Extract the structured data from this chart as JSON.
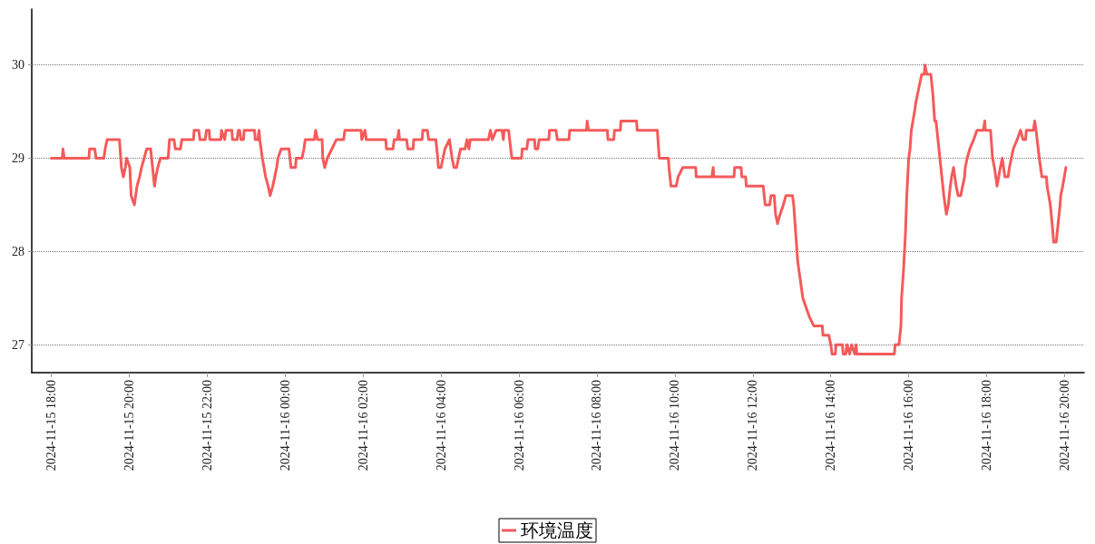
{
  "chart_data": {
    "type": "line",
    "legend": "bottom",
    "grid": "y",
    "marker": "none",
    "line_style": "solid",
    "xlim": [
      "2024-11-15T17:30",
      "2024-11-16T20:30"
    ],
    "ylim": [
      26.7,
      30.6
    ],
    "yticks": [
      27,
      28,
      29,
      30
    ],
    "xticks": [
      {
        "value": "2024-11-15T18:00",
        "label": "2024-11-15 18:00"
      },
      {
        "value": "2024-11-15T20:00",
        "label": "2024-11-15 20:00"
      },
      {
        "value": "2024-11-15T22:00",
        "label": "2024-11-15 22:00"
      },
      {
        "value": "2024-11-16T00:00",
        "label": "2024-11-16 00:00"
      },
      {
        "value": "2024-11-16T02:00",
        "label": "2024-11-16 02:00"
      },
      {
        "value": "2024-11-16T04:00",
        "label": "2024-11-16 04:00"
      },
      {
        "value": "2024-11-16T06:00",
        "label": "2024-11-16 06:00"
      },
      {
        "value": "2024-11-16T08:00",
        "label": "2024-11-16 08:00"
      },
      {
        "value": "2024-11-16T10:00",
        "label": "2024-11-16 10:00"
      },
      {
        "value": "2024-11-16T12:00",
        "label": "2024-11-16 12:00"
      },
      {
        "value": "2024-11-16T14:00",
        "label": "2024-11-16 14:00"
      },
      {
        "value": "2024-11-16T16:00",
        "label": "2024-11-16 16:00"
      },
      {
        "value": "2024-11-16T18:00",
        "label": "2024-11-16 18:00"
      },
      {
        "value": "2024-11-16T20:00",
        "label": "2024-11-16 20:00"
      }
    ],
    "x": [
      "2024-11-15T18:00",
      "2024-11-15T18:17",
      "2024-11-15T18:18",
      "2024-11-15T18:20",
      "2024-11-15T18:58",
      "2024-11-15T18:59",
      "2024-11-15T19:07",
      "2024-11-15T19:09",
      "2024-11-15T19:21",
      "2024-11-15T19:23",
      "2024-11-15T19:26",
      "2024-11-15T19:45",
      "2024-11-15T19:48",
      "2024-11-15T19:51",
      "2024-11-15T19:54",
      "2024-11-15T19:56",
      "2024-11-15T20:01",
      "2024-11-15T20:03",
      "2024-11-15T20:08",
      "2024-11-15T20:12",
      "2024-11-15T20:16",
      "2024-11-15T20:19",
      "2024-11-15T20:23",
      "2024-11-15T20:27",
      "2024-11-15T20:33",
      "2024-11-15T20:36",
      "2024-11-15T20:39",
      "2024-11-15T20:41",
      "2024-11-15T20:44",
      "2024-11-15T20:48",
      "2024-11-15T21:00",
      "2024-11-15T21:02",
      "2024-11-15T21:09",
      "2024-11-15T21:11",
      "2024-11-15T21:19",
      "2024-11-15T21:21",
      "2024-11-15T21:39",
      "2024-11-15T21:40",
      "2024-11-15T21:47",
      "2024-11-15T21:49",
      "2024-11-15T21:57",
      "2024-11-15T21:59",
      "2024-11-15T22:03",
      "2024-11-15T22:04",
      "2024-11-15T22:21",
      "2024-11-15T22:22",
      "2024-11-15T22:27",
      "2024-11-15T22:29",
      "2024-11-15T22:38",
      "2024-11-15T22:39",
      "2024-11-15T22:46",
      "2024-11-15T22:48",
      "2024-11-15T22:50",
      "2024-11-15T22:52",
      "2024-11-15T22:56",
      "2024-11-15T22:57",
      "2024-11-15T23:13",
      "2024-11-15T23:14",
      "2024-11-15T23:18",
      "2024-11-15T23:20",
      "2024-11-15T23:21",
      "2024-11-15T23:25",
      "2024-11-15T23:30",
      "2024-11-15T23:34",
      "2024-11-15T23:37",
      "2024-11-15T23:41",
      "2024-11-15T23:44",
      "2024-11-15T23:47",
      "2024-11-15T23:49",
      "2024-11-15T23:54",
      "2024-11-16T00:06",
      "2024-11-16T00:09",
      "2024-11-16T00:16",
      "2024-11-16T00:17",
      "2024-11-16T00:26",
      "2024-11-16T00:29",
      "2024-11-16T00:31",
      "2024-11-16T00:45",
      "2024-11-16T00:47",
      "2024-11-16T00:50",
      "2024-11-16T00:57",
      "2024-11-16T00:58",
      "2024-11-16T01:01",
      "2024-11-16T01:05",
      "2024-11-16T01:12",
      "2024-11-16T01:19",
      "2024-11-16T01:30",
      "2024-11-16T01:32",
      "2024-11-16T01:57",
      "2024-11-16T01:58",
      "2024-11-16T02:03",
      "2024-11-16T02:05",
      "2024-11-16T02:35",
      "2024-11-16T02:36",
      "2024-11-16T02:46",
      "2024-11-16T02:48",
      "2024-11-16T02:53",
      "2024-11-16T02:55",
      "2024-11-16T02:56",
      "2024-11-16T03:07",
      "2024-11-16T03:09",
      "2024-11-16T03:17",
      "2024-11-16T03:18",
      "2024-11-16T03:31",
      "2024-11-16T03:32",
      "2024-11-16T03:39",
      "2024-11-16T03:41",
      "2024-11-16T03:52",
      "2024-11-16T03:55",
      "2024-11-16T03:56",
      "2024-11-16T04:00",
      "2024-11-16T04:03",
      "2024-11-16T04:06",
      "2024-11-16T04:13",
      "2024-11-16T04:17",
      "2024-11-16T04:20",
      "2024-11-16T04:24",
      "2024-11-16T04:27",
      "2024-11-16T04:30",
      "2024-11-16T04:37",
      "2024-11-16T04:40",
      "2024-11-16T04:43",
      "2024-11-16T04:45",
      "2024-11-16T05:13",
      "2024-11-16T05:16",
      "2024-11-16T05:19",
      "2024-11-16T05:25",
      "2024-11-16T05:34",
      "2024-11-16T05:36",
      "2024-11-16T05:37",
      "2024-11-16T05:44",
      "2024-11-16T05:49",
      "2024-11-16T06:04",
      "2024-11-16T06:05",
      "2024-11-16T06:12",
      "2024-11-16T06:14",
      "2024-11-16T06:24",
      "2024-11-16T06:25",
      "2024-11-16T06:29",
      "2024-11-16T06:31",
      "2024-11-16T06:46",
      "2024-11-16T06:47",
      "2024-11-16T06:57",
      "2024-11-16T06:59",
      "2024-11-16T07:17",
      "2024-11-16T07:18",
      "2024-11-16T07:44",
      "2024-11-16T07:45",
      "2024-11-16T07:47",
      "2024-11-16T08:16",
      "2024-11-16T08:17",
      "2024-11-16T08:26",
      "2024-11-16T08:27",
      "2024-11-16T08:36",
      "2024-11-16T08:37",
      "2024-11-16T09:01",
      "2024-11-16T09:02",
      "2024-11-16T09:33",
      "2024-11-16T09:36",
      "2024-11-16T09:50",
      "2024-11-16T09:51",
      "2024-11-16T09:54",
      "2024-11-16T10:02",
      "2024-11-16T10:05",
      "2024-11-16T10:12",
      "2024-11-16T10:32",
      "2024-11-16T10:33",
      "2024-11-16T10:57",
      "2024-11-16T10:59",
      "2024-11-16T11:00",
      "2024-11-16T11:31",
      "2024-11-16T11:32",
      "2024-11-16T11:42",
      "2024-11-16T11:43",
      "2024-11-16T11:49",
      "2024-11-16T11:50",
      "2024-11-16T12:16",
      "2024-11-16T12:19",
      "2024-11-16T12:26",
      "2024-11-16T12:28",
      "2024-11-16T12:33",
      "2024-11-16T12:35",
      "2024-11-16T12:38",
      "2024-11-16T12:42",
      "2024-11-16T12:47",
      "2024-11-16T12:51",
      "2024-11-16T13:01",
      "2024-11-16T13:03",
      "2024-11-16T13:06",
      "2024-11-16T13:09",
      "2024-11-16T13:13",
      "2024-11-16T13:17",
      "2024-11-16T13:22",
      "2024-11-16T13:27",
      "2024-11-16T13:34",
      "2024-11-16T13:47",
      "2024-11-16T13:48",
      "2024-11-16T13:57",
      "2024-11-16T14:00",
      "2024-11-16T14:02",
      "2024-11-16T14:07",
      "2024-11-16T14:08",
      "2024-11-16T14:18",
      "2024-11-16T14:19",
      "2024-11-16T14:23",
      "2024-11-16T14:25",
      "2024-11-16T14:29",
      "2024-11-16T14:32",
      "2024-11-16T14:37",
      "2024-11-16T14:39",
      "2024-11-16T14:40",
      "2024-11-16T15:38",
      "2024-11-16T15:39",
      "2024-11-16T15:45",
      "2024-11-16T15:48",
      "2024-11-16T15:49",
      "2024-11-16T15:52",
      "2024-11-16T15:55",
      "2024-11-16T15:57",
      "2024-11-16T16:00",
      "2024-11-16T16:02",
      "2024-11-16T16:04",
      "2024-11-16T16:09",
      "2024-11-16T16:11",
      "2024-11-16T16:14",
      "2024-11-16T16:17",
      "2024-11-16T16:20",
      "2024-11-16T16:24",
      "2024-11-16T16:25",
      "2024-11-16T16:28",
      "2024-11-16T16:34",
      "2024-11-16T16:37",
      "2024-11-16T16:40",
      "2024-11-16T16:42",
      "2024-11-16T16:48",
      "2024-11-16T16:51",
      "2024-11-16T16:54",
      "2024-11-16T16:58",
      "2024-11-16T17:01",
      "2024-11-16T17:04",
      "2024-11-16T17:06",
      "2024-11-16T17:09",
      "2024-11-16T17:13",
      "2024-11-16T17:16",
      "2024-11-16T17:20",
      "2024-11-16T17:23",
      "2024-11-16T17:26",
      "2024-11-16T17:27",
      "2024-11-16T17:30",
      "2024-11-16T17:34",
      "2024-11-16T17:40",
      "2024-11-16T17:45",
      "2024-11-16T17:55",
      "2024-11-16T17:57",
      "2024-11-16T17:58",
      "2024-11-16T18:06",
      "2024-11-16T18:09",
      "2024-11-16T18:12",
      "2024-11-16T18:16",
      "2024-11-16T18:21",
      "2024-11-16T18:24",
      "2024-11-16T18:28",
      "2024-11-16T18:33",
      "2024-11-16T18:35",
      "2024-11-16T18:38",
      "2024-11-16T18:41",
      "2024-11-16T18:47",
      "2024-11-16T18:52",
      "2024-11-16T18:56",
      "2024-11-16T19:00",
      "2024-11-16T19:01",
      "2024-11-16T19:12",
      "2024-11-16T19:14",
      "2024-11-16T19:16",
      "2024-11-16T19:21",
      "2024-11-16T19:25",
      "2024-11-16T19:32",
      "2024-11-16T19:33",
      "2024-11-16T19:38",
      "2024-11-16T19:42",
      "2024-11-16T19:43",
      "2024-11-16T19:47",
      "2024-11-16T19:50",
      "2024-11-16T19:53",
      "2024-11-16T19:54",
      "2024-11-16T19:57",
      "2024-11-16T20:02"
    ],
    "series": [
      {
        "name": "环境温度",
        "color": "#f55a5a",
        "values": [
          29.0,
          29.0,
          29.1,
          29.0,
          29.0,
          29.1,
          29.1,
          29.0,
          29.0,
          29.1,
          29.2,
          29.2,
          28.9,
          28.8,
          28.9,
          29.0,
          28.9,
          28.6,
          28.5,
          28.7,
          28.8,
          28.9,
          29.0,
          29.1,
          29.1,
          28.9,
          28.7,
          28.8,
          28.9,
          29.0,
          29.0,
          29.2,
          29.2,
          29.1,
          29.1,
          29.2,
          29.2,
          29.3,
          29.3,
          29.2,
          29.2,
          29.3,
          29.3,
          29.2,
          29.2,
          29.3,
          29.2,
          29.3,
          29.3,
          29.2,
          29.2,
          29.3,
          29.3,
          29.2,
          29.2,
          29.3,
          29.3,
          29.2,
          29.2,
          29.3,
          29.2,
          29.0,
          28.8,
          28.7,
          28.6,
          28.7,
          28.8,
          28.9,
          29.0,
          29.1,
          29.1,
          28.9,
          28.9,
          29.0,
          29.0,
          29.1,
          29.2,
          29.2,
          29.3,
          29.2,
          29.2,
          29.0,
          28.9,
          29.0,
          29.1,
          29.2,
          29.2,
          29.3,
          29.3,
          29.2,
          29.3,
          29.2,
          29.2,
          29.1,
          29.1,
          29.2,
          29.2,
          29.3,
          29.2,
          29.2,
          29.1,
          29.1,
          29.2,
          29.2,
          29.3,
          29.3,
          29.2,
          29.2,
          29.0,
          28.9,
          28.9,
          29.0,
          29.1,
          29.2,
          29.0,
          28.9,
          28.9,
          29.0,
          29.1,
          29.1,
          29.2,
          29.1,
          29.2,
          29.2,
          29.3,
          29.2,
          29.3,
          29.3,
          29.2,
          29.3,
          29.3,
          29.0,
          29.0,
          29.1,
          29.1,
          29.2,
          29.2,
          29.1,
          29.1,
          29.2,
          29.2,
          29.3,
          29.3,
          29.2,
          29.2,
          29.3,
          29.3,
          29.4,
          29.3,
          29.3,
          29.2,
          29.2,
          29.3,
          29.3,
          29.4,
          29.4,
          29.3,
          29.3,
          29.0,
          29.0,
          28.9,
          28.7,
          28.7,
          28.8,
          28.9,
          28.9,
          28.8,
          28.8,
          28.9,
          28.8,
          28.8,
          28.9,
          28.9,
          28.8,
          28.8,
          28.7,
          28.7,
          28.5,
          28.5,
          28.6,
          28.6,
          28.4,
          28.3,
          28.4,
          28.5,
          28.6,
          28.6,
          28.5,
          28.2,
          27.9,
          27.7,
          27.5,
          27.4,
          27.3,
          27.2,
          27.2,
          27.1,
          27.1,
          27.0,
          26.9,
          26.9,
          27.0,
          27.0,
          26.9,
          26.9,
          27.0,
          26.9,
          27.0,
          26.9,
          27.0,
          26.9,
          26.9,
          27.0,
          27.0,
          27.2,
          27.5,
          27.8,
          28.2,
          28.6,
          29.0,
          29.1,
          29.3,
          29.5,
          29.6,
          29.7,
          29.8,
          29.9,
          29.9,
          30.0,
          29.9,
          29.9,
          29.7,
          29.4,
          29.4,
          29.0,
          28.8,
          28.6,
          28.4,
          28.5,
          28.7,
          28.8,
          28.9,
          28.7,
          28.6,
          28.6,
          28.7,
          28.8,
          28.9,
          29.0,
          29.1,
          29.2,
          29.3,
          29.3,
          29.4,
          29.3,
          29.3,
          29.0,
          28.9,
          28.7,
          28.9,
          29.0,
          28.8,
          28.8,
          28.9,
          29.0,
          29.1,
          29.2,
          29.3,
          29.2,
          29.2,
          29.3,
          29.3,
          29.4,
          29.3,
          29.0,
          28.8,
          28.8,
          28.7,
          28.5,
          28.2,
          28.1,
          28.1,
          28.3,
          28.5,
          28.6,
          28.7,
          28.9
        ]
      }
    ]
  }
}
